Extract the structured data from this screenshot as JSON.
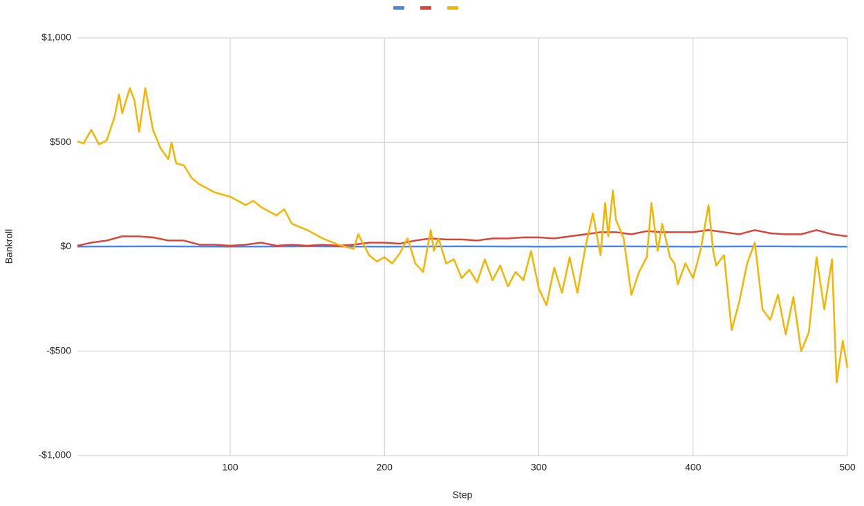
{
  "chart_data": {
    "type": "line",
    "xlabel": "Step",
    "ylabel": "Bankroll",
    "xlim": [
      1,
      500
    ],
    "xticks": [
      100,
      200,
      300,
      400,
      500
    ],
    "ylim": [
      -1000,
      1000
    ],
    "yticks": [
      {
        "value": -1000,
        "label": "-$1,000"
      },
      {
        "value": -500,
        "label": "-$500"
      },
      {
        "value": 0,
        "label": "$0"
      },
      {
        "value": 500,
        "label": "$500"
      },
      {
        "value": 1000,
        "label": "$1,000"
      }
    ],
    "grid": true,
    "legend": "top",
    "series": [
      {
        "color": "#4a86e8",
        "x": [
          1,
          50,
          100,
          150,
          200,
          250,
          300,
          350,
          400,
          450,
          500
        ],
        "values": [
          1,
          2,
          1,
          2,
          1,
          2,
          1,
          2,
          1,
          2,
          1
        ]
      },
      {
        "color": "#db4437",
        "x": [
          1,
          10,
          20,
          30,
          40,
          50,
          60,
          70,
          80,
          90,
          100,
          110,
          120,
          130,
          140,
          150,
          160,
          170,
          180,
          190,
          200,
          210,
          220,
          230,
          240,
          250,
          260,
          270,
          280,
          290,
          300,
          310,
          320,
          330,
          340,
          350,
          360,
          370,
          380,
          390,
          400,
          410,
          420,
          430,
          440,
          450,
          460,
          470,
          480,
          490,
          500
        ],
        "values": [
          5,
          20,
          30,
          50,
          50,
          45,
          30,
          30,
          10,
          10,
          5,
          10,
          20,
          5,
          10,
          5,
          10,
          5,
          10,
          20,
          20,
          15,
          30,
          40,
          35,
          35,
          30,
          40,
          40,
          45,
          45,
          40,
          50,
          60,
          70,
          70,
          60,
          75,
          70,
          70,
          70,
          80,
          70,
          60,
          80,
          65,
          60,
          60,
          80,
          60,
          50
        ]
      },
      {
        "color": "#f4b400",
        "x": [
          1,
          5,
          10,
          15,
          20,
          25,
          28,
          30,
          35,
          38,
          41,
          45,
          50,
          55,
          60,
          62,
          65,
          70,
          75,
          80,
          90,
          100,
          110,
          115,
          120,
          125,
          130,
          135,
          140,
          150,
          160,
          170,
          175,
          180,
          183,
          190,
          195,
          200,
          205,
          210,
          215,
          220,
          225,
          230,
          232,
          235,
          240,
          245,
          250,
          255,
          260,
          265,
          270,
          275,
          280,
          285,
          290,
          295,
          300,
          305,
          310,
          315,
          320,
          325,
          330,
          335,
          340,
          343,
          345,
          348,
          350,
          355,
          360,
          365,
          370,
          373,
          377,
          380,
          385,
          388,
          390,
          395,
          400,
          405,
          410,
          413,
          415,
          420,
          425,
          430,
          435,
          440,
          445,
          450,
          455,
          460,
          465,
          470,
          475,
          480,
          485,
          490,
          493,
          497,
          500
        ],
        "values": [
          505,
          495,
          560,
          490,
          510,
          620,
          730,
          640,
          760,
          700,
          550,
          760,
          560,
          470,
          420,
          500,
          400,
          390,
          330,
          300,
          260,
          240,
          200,
          220,
          190,
          170,
          150,
          180,
          110,
          80,
          40,
          10,
          0,
          -10,
          60,
          -40,
          -70,
          -50,
          -80,
          -30,
          40,
          -80,
          -120,
          80,
          -20,
          40,
          -80,
          -60,
          -150,
          -110,
          -170,
          -60,
          -160,
          -90,
          -190,
          -120,
          -160,
          -20,
          -200,
          -280,
          -100,
          -220,
          -50,
          -220,
          -10,
          160,
          -40,
          210,
          50,
          270,
          130,
          40,
          -230,
          -120,
          -50,
          210,
          -20,
          110,
          -50,
          -80,
          -180,
          -80,
          -150,
          -10,
          200,
          -20,
          -90,
          -40,
          -400,
          -260,
          -80,
          20,
          -300,
          -350,
          -230,
          -420,
          -240,
          -500,
          -410,
          -50,
          -300,
          -60,
          -650,
          -450,
          -580
        ]
      }
    ]
  }
}
